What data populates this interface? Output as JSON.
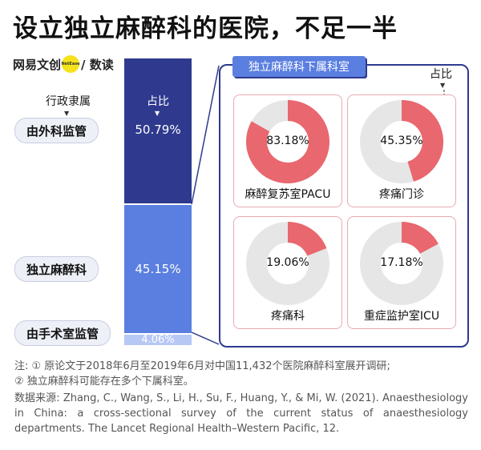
{
  "title": "设立独立麻醉科的医院，不足一半",
  "logo": {
    "text_left": "网易文创",
    "dot_text": "NetEase",
    "text_right": "/ 数读"
  },
  "left_header": "行政隶属",
  "bar_header": "占比",
  "chart_data": [
    {
      "type": "bar",
      "categories": [
        "由外科监管",
        "独立麻醉科",
        "由手术室监管"
      ],
      "values": [
        50.79,
        45.15,
        4.06
      ],
      "value_labels": [
        "50.79%",
        "45.15%",
        "4.06%"
      ],
      "unit": "%",
      "colors": [
        "#2f3a8e",
        "#5a7fe0",
        "#b7c8f5"
      ]
    },
    {
      "type": "pie",
      "title": "独立麻醉科下属科室",
      "value_axis_label": "占比",
      "slices": [
        {
          "label": "麻醉复苏室PACU",
          "value": 83.18,
          "value_label": "83.18%"
        },
        {
          "label": "疼痛门诊",
          "value": 45.35,
          "value_label": "45.35%"
        },
        {
          "label": "疼痛科",
          "value": 19.06,
          "value_label": "19.06%"
        },
        {
          "label": "重症监护室ICU",
          "value": 17.18,
          "value_label": "17.18%"
        }
      ],
      "colors": {
        "filled": "#e9676e",
        "remaining": "#e6e6e6"
      }
    }
  ],
  "notes": [
    "注: ① 原论文于2018年6月至2019年6月对中国11,432个医院麻醉科室展开调研;",
    "② 独立麻醉科可能存在多个下属科室。"
  ],
  "source": "数据来源: Zhang, C., Wang, S., Li, H., Su, F., Huang, Y., & Mi, W. (2021). Anaesthesiology in China: a cross-sectional survey of the current status of anaesthesiology departments. The Lancet Regional Health–Western Pacific, 12."
}
